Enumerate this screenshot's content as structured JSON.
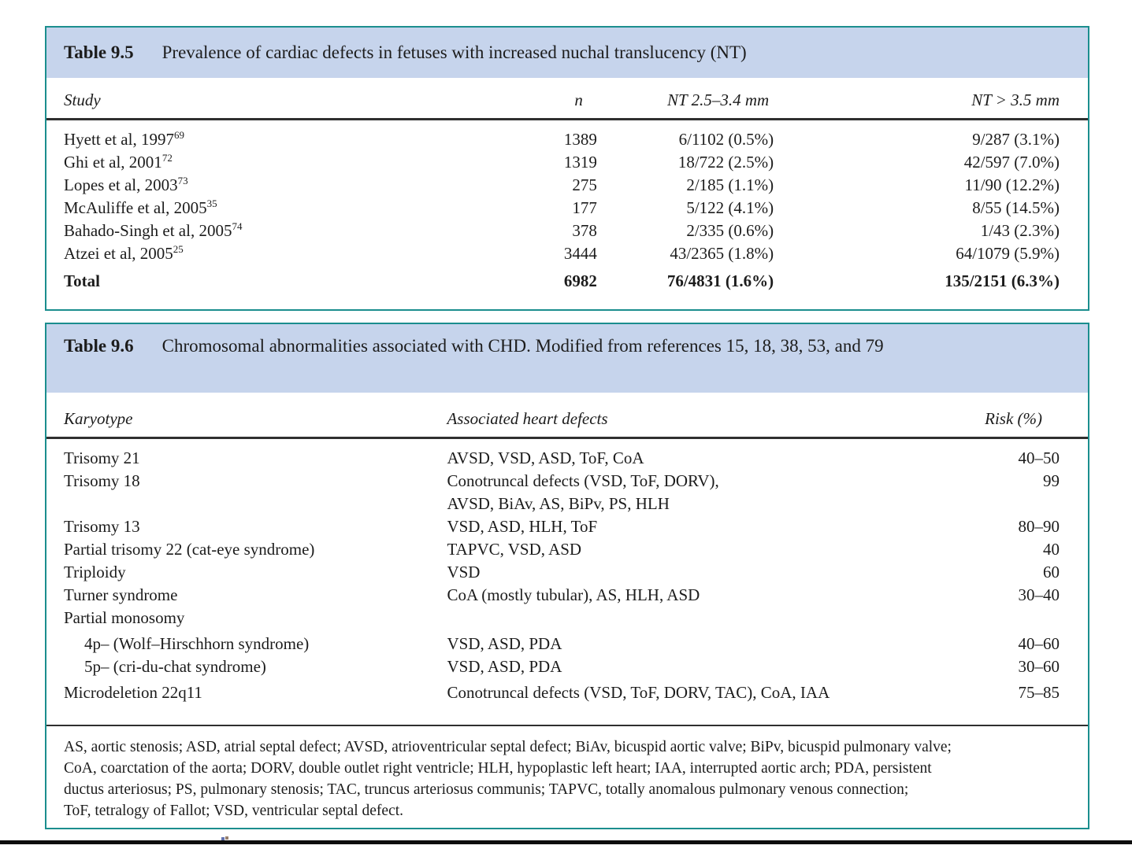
{
  "colors": {
    "band_blue": "#c6d4ec",
    "box_border_teal": "#1b8e8e",
    "text": "#1c1c1c",
    "rule_dark": "#2f2f2f",
    "bottom_bar_black": "#0d0d0d"
  },
  "table1": {
    "title_label": "Table 9.5",
    "title_text": "Prevalence of cardiac defects in fetuses with increased nuchal translucency (NT)",
    "columns": [
      "Study",
      "n",
      "NT 2.5–3.4 mm",
      "NT > 3.5 mm"
    ],
    "rows": [
      {
        "study": "Hyett et al, 1997",
        "ref": "69",
        "n": "1389",
        "nt_low": "6/1102 (0.5%)",
        "nt_high": "9/287 (3.1%)"
      },
      {
        "study": "Ghi et al, 2001",
        "ref": "72",
        "n": "1319",
        "nt_low": "18/722 (2.5%)",
        "nt_high": "42/597 (7.0%)"
      },
      {
        "study": "Lopes et al, 2003",
        "ref": "73",
        "n": "275",
        "nt_low": "2/185 (1.1%)",
        "nt_high": "11/90 (12.2%)"
      },
      {
        "study": "McAuliffe et al, 2005",
        "ref": "35",
        "n": "177",
        "nt_low": "5/122 (4.1%)",
        "nt_high": "8/55 (14.5%)"
      },
      {
        "study": "Bahado-Singh et al, 2005",
        "ref": "74",
        "n": "378",
        "nt_low": "2/335 (0.6%)",
        "nt_high": "1/43 (2.3%)"
      },
      {
        "study": "Atzei et al, 2005",
        "ref": "25",
        "n": "3444",
        "nt_low": "43/2365 (1.8%)",
        "nt_high": "64/1079 (5.9%)"
      },
      {
        "study": "Total",
        "ref": "",
        "n": "6982",
        "nt_low": "76/4831 (1.6%)",
        "nt_high": "135/2151 (6.3%)"
      }
    ]
  },
  "table2": {
    "title_label": "Table 9.6",
    "title_text": "Chromosomal abnormalities associated with CHD. Modified from references 15, 18, 38, 53, and 79",
    "columns": [
      "Karyotype",
      "Associated heart defects",
      "Risk (%)"
    ],
    "rows": [
      {
        "karyotype": "Trisomy 21",
        "defects": "AVSD, VSD, ASD, ToF, CoA",
        "risk": "40–50"
      },
      {
        "karyotype": "Trisomy 18",
        "defects": "Conotruncal defects (VSD, ToF, DORV),",
        "risk": "99"
      },
      {
        "karyotype": "",
        "defects": "AVSD, BiAv, AS, BiPv, PS, HLH",
        "risk": ""
      },
      {
        "karyotype": "Trisomy 13",
        "defects": "VSD, ASD, HLH, ToF",
        "risk": "80–90"
      },
      {
        "karyotype": "Partial trisomy 22 (cat-eye syndrome)",
        "defects": "TAPVC, VSD, ASD",
        "risk": "40"
      },
      {
        "karyotype": "Triploidy",
        "defects": "VSD",
        "risk": "60"
      },
      {
        "karyotype": "Turner syndrome",
        "defects": "CoA (mostly tubular), AS, HLH, ASD",
        "risk": "30–40"
      },
      {
        "karyotype": "Partial monosomy",
        "defects": "",
        "risk": ""
      },
      {
        "karyotype": "4p– (Wolf–Hirschhorn syndrome)",
        "defects": "VSD, ASD, PDA",
        "risk": "40–60"
      },
      {
        "karyotype": "5p– (cri-du-chat syndrome)",
        "defects": "VSD, ASD, PDA",
        "risk": "30–60"
      },
      {
        "karyotype": "Microdeletion 22q11",
        "defects": "Conotruncal defects (VSD, ToF, DORV, TAC), CoA, IAA",
        "risk": "75–85"
      }
    ],
    "footnote_lines": [
      "AS, aortic stenosis; ASD, atrial septal defect; AVSD, atrioventricular septal defect; BiAv, bicuspid aortic valve; BiPv, bicuspid pulmonary valve;",
      "CoA, coarctation of the aorta; DORV, double outlet right ventricle; HLH, hypoplastic left heart; IAA, interrupted aortic arch; PDA, persistent",
      "ductus arteriosus; PS, pulmonary stenosis; TAC, truncus arteriosus communis; TAPVC, totally anomalous pulmonary venous connection;",
      "ToF, tetralogy of Fallot; VSD, ventricular septal defect."
    ]
  }
}
